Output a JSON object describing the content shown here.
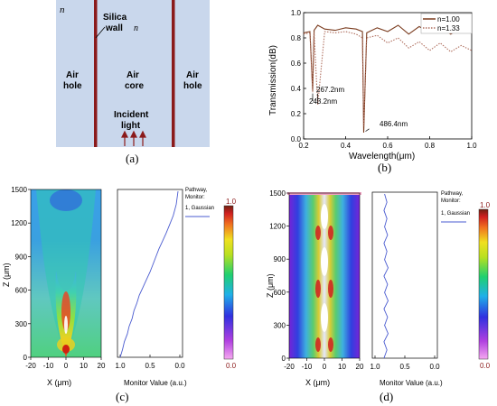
{
  "panel_a": {
    "caption": "(a)",
    "n_outer": "n",
    "silica_line1": "Silica",
    "silica_line2": "wall",
    "n_wall": "n",
    "air_hole_left": [
      "Air",
      "hole"
    ],
    "air_core": [
      "Air",
      "core"
    ],
    "air_hole_right": [
      "Air",
      "hole"
    ],
    "incident": [
      "Incident",
      "light"
    ]
  },
  "panel_b": {
    "caption": "(b)",
    "annotations": [
      "243.2nm",
      "267.2nm",
      "486.4nm"
    ]
  },
  "panel_c": {
    "caption": "(c)",
    "monitor_legend": [
      "Pathway,",
      "Monitor:",
      "1, Gaussian"
    ]
  },
  "panel_d": {
    "caption": "(d)",
    "monitor_legend": [
      "Pathway,",
      "Monitor:",
      "1, Gaussian"
    ]
  },
  "colors": {
    "wall": "#8b1a1a",
    "fill_a": "#c9d7ec",
    "series_1": "#7a3b1e",
    "series_2": "#b07060",
    "monitor_line": "#4a5bd0"
  },
  "chart_data": [
    {
      "type": "line",
      "id": "transmission",
      "xlabel": "Wavelength(μm)",
      "ylabel": "Transmission(dB)",
      "xlim": [
        0.2,
        1.0
      ],
      "ylim": [
        0.0,
        1.0
      ],
      "xticks": [
        "0.2",
        "0.4",
        "0.6",
        "0.8",
        "1.0"
      ],
      "yticks": [
        "0.0",
        "0.2",
        "0.4",
        "0.6",
        "0.8",
        "1.0"
      ],
      "legend_position": "top-right",
      "series": [
        {
          "name": "n=1.00",
          "style": "solid",
          "x": [
            0.2,
            0.23,
            0.243,
            0.25,
            0.267,
            0.3,
            0.35,
            0.4,
            0.45,
            0.48,
            0.486,
            0.5,
            0.55,
            0.6,
            0.65,
            0.7,
            0.75,
            0.8,
            0.85,
            0.9,
            0.95,
            1.0
          ],
          "y": [
            0.84,
            0.85,
            0.38,
            0.86,
            0.9,
            0.87,
            0.86,
            0.88,
            0.87,
            0.85,
            0.05,
            0.84,
            0.88,
            0.85,
            0.88,
            0.83,
            0.87,
            0.84,
            0.87,
            0.83,
            0.86,
            0.84
          ]
        },
        {
          "name": "n=1.33",
          "style": "dotted",
          "x": [
            0.2,
            0.23,
            0.243,
            0.25,
            0.267,
            0.3,
            0.35,
            0.4,
            0.45,
            0.48,
            0.486,
            0.5,
            0.55,
            0.6,
            0.65,
            0.7,
            0.75,
            0.8,
            0.85,
            0.9,
            0.95,
            1.0
          ],
          "y": [
            0.83,
            0.84,
            0.37,
            0.84,
            0.27,
            0.85,
            0.84,
            0.85,
            0.83,
            0.8,
            0.1,
            0.8,
            0.82,
            0.76,
            0.78,
            0.72,
            0.75,
            0.7,
            0.74,
            0.69,
            0.72,
            0.7
          ]
        }
      ]
    },
    {
      "type": "heatmap",
      "id": "field_c",
      "xlabel": "X (μm)",
      "ylabel": "Z (μm)",
      "xlim": [
        -20,
        20
      ],
      "ylim": [
        0,
        1500
      ],
      "xticks": [
        "-20",
        "-10",
        "0",
        "10",
        "20"
      ],
      "yticks": [
        "0",
        "300",
        "600",
        "900",
        "1200",
        "1500"
      ],
      "colorbar_ticks": [
        "1.0",
        "0.0"
      ]
    },
    {
      "type": "line",
      "id": "monitor_c",
      "xlabel": "Monitor Value (a.u.)",
      "xlim": [
        1.0,
        0.0
      ],
      "xticks": [
        "1.0",
        "0.5",
        "0.0"
      ],
      "series": [
        {
          "name": "1, Gaussian",
          "x": [
            1.0,
            0.96,
            0.93,
            0.88,
            0.85,
            0.8,
            0.77,
            0.72,
            0.68,
            0.62,
            0.56,
            0.5,
            0.45,
            0.4,
            0.35,
            0.29,
            0.23,
            0.17,
            0.11,
            0.06,
            0.03
          ],
          "z": [
            0,
            70,
            140,
            210,
            280,
            350,
            420,
            490,
            560,
            630,
            700,
            770,
            840,
            910,
            980,
            1050,
            1120,
            1200,
            1280,
            1380,
            1500
          ]
        }
      ]
    },
    {
      "type": "heatmap",
      "id": "field_d",
      "xlabel": "X (μm)",
      "ylabel": "Z (μm)",
      "xlim": [
        -20,
        20
      ],
      "ylim": [
        0,
        1500
      ],
      "xticks": [
        "-20",
        "-10",
        "0",
        "10",
        "20"
      ],
      "yticks": [
        "0",
        "300",
        "600",
        "900",
        "1200",
        "1500"
      ],
      "colorbar_ticks": [
        "1.0",
        "0.0"
      ]
    },
    {
      "type": "line",
      "id": "monitor_d",
      "xlabel": "Monitor Value (a.u.)",
      "xlim": [
        1.0,
        0.0
      ],
      "xticks": [
        "1.0",
        "0.5",
        "0.0"
      ],
      "series": [
        {
          "name": "1, Gaussian",
          "x": [
            0.85,
            0.8,
            0.85,
            0.78,
            0.84,
            0.79,
            0.85,
            0.78,
            0.84,
            0.79,
            0.85,
            0.78,
            0.84,
            0.8,
            0.85,
            0.79,
            0.84,
            0.8,
            0.85,
            0.8,
            0.84
          ],
          "z": [
            0,
            75,
            150,
            225,
            300,
            375,
            450,
            525,
            600,
            675,
            750,
            825,
            900,
            975,
            1050,
            1125,
            1200,
            1275,
            1350,
            1425,
            1500
          ]
        }
      ]
    }
  ]
}
